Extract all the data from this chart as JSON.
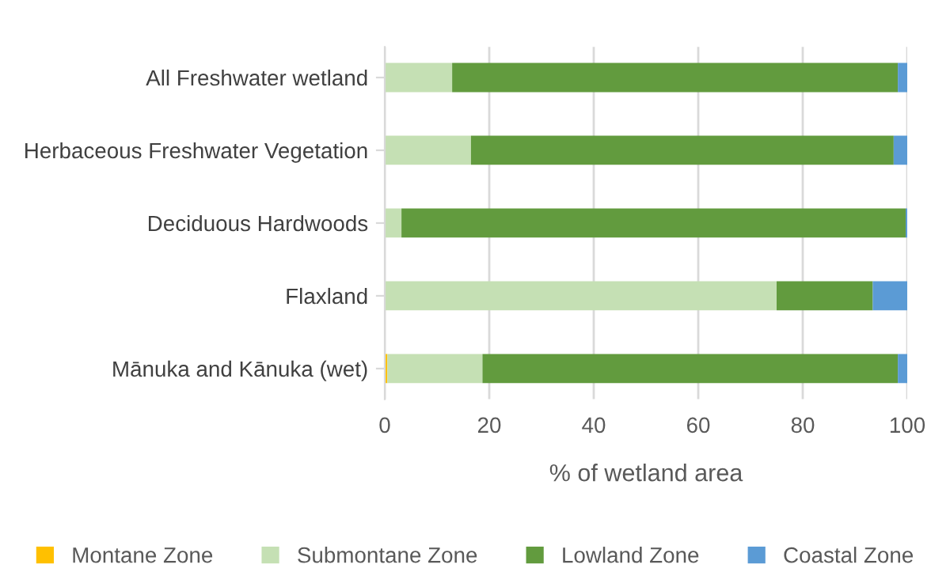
{
  "chart_data": {
    "type": "bar",
    "orientation": "horizontal",
    "stacked": true,
    "xlabel": "% of wetland area",
    "categories": [
      "All Freshwater wetland",
      "Herbaceous Freshwater Vegetation",
      "Deciduous Hardwoods",
      "Flaxland",
      "Mānuka and Kānuka (wet)"
    ],
    "series": [
      {
        "name": "Montane Zone",
        "color": "#ffc000",
        "values": [
          0,
          0,
          0,
          0,
          0.5
        ]
      },
      {
        "name": "Submontane Zone",
        "color": "#c5e0b4",
        "values": [
          12.9,
          16.5,
          3.2,
          75.0,
          18.2
        ]
      },
      {
        "name": "Lowland Zone",
        "color": "#629b3e",
        "values": [
          85.3,
          80.9,
          96.5,
          18.4,
          79.5
        ]
      },
      {
        "name": "Coastal Zone",
        "color": "#5b9bd5",
        "values": [
          1.8,
          2.6,
          0.3,
          6.6,
          1.8
        ]
      }
    ],
    "xlim": [
      0,
      100
    ],
    "xticks": [
      0,
      20,
      40,
      60,
      80,
      100
    ],
    "grid": "x",
    "legend": "bottom"
  }
}
